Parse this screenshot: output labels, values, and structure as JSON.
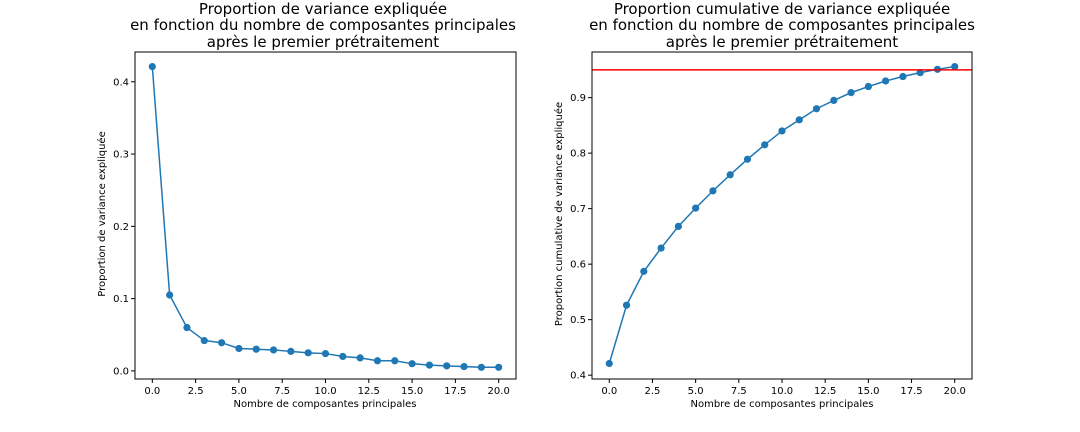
{
  "chart_data": [
    {
      "type": "line",
      "title": [
        "Proportion de variance expliquée",
        "en fonction du nombre de composantes principales",
        "après le premier prétraitement"
      ],
      "xlabel": "Nombre de composantes principales",
      "ylabel": "Proportion de variance expliquée",
      "xlim": [
        -1,
        21
      ],
      "ylim": [
        -0.0112,
        0.4412
      ],
      "xticks": [
        0.0,
        2.5,
        5.0,
        7.5,
        10.0,
        12.5,
        15.0,
        17.5,
        20.0
      ],
      "xtick_labels": [
        "0.0",
        "2.5",
        "5.0",
        "7.5",
        "10.0",
        "12.5",
        "15.0",
        "17.5",
        "20.0"
      ],
      "yticks": [
        0.0,
        0.1,
        0.2,
        0.3,
        0.4
      ],
      "ytick_labels": [
        "0.0",
        "0.1",
        "0.2",
        "0.3",
        "0.4"
      ],
      "grid": false,
      "color": "#1f77b4",
      "series": [
        {
          "x": [
            0,
            1,
            2,
            3,
            4,
            5,
            6,
            7,
            8,
            9,
            10,
            11,
            12,
            13,
            14,
            15,
            16,
            17,
            18,
            19,
            20
          ],
          "values": [
            0.421,
            0.105,
            0.06,
            0.042,
            0.039,
            0.031,
            0.03,
            0.029,
            0.027,
            0.025,
            0.024,
            0.02,
            0.018,
            0.014,
            0.014,
            0.01,
            0.008,
            0.007,
            0.006,
            0.005,
            0.005
          ]
        }
      ]
    },
    {
      "type": "line",
      "title": [
        "Proportion cumulative de variance expliquée",
        "en fonction du nombre de composantes principales",
        "après le premier prétraitement"
      ],
      "xlabel": "Nombre de composantes principales",
      "ylabel": "Proportion cumulative de variance expliquée",
      "xlim": [
        -1,
        21
      ],
      "ylim": [
        0.3931,
        0.9822
      ],
      "xticks": [
        0.0,
        2.5,
        5.0,
        7.5,
        10.0,
        12.5,
        15.0,
        17.5,
        20.0
      ],
      "xtick_labels": [
        "0.0",
        "2.5",
        "5.0",
        "7.5",
        "10.0",
        "12.5",
        "15.0",
        "17.5",
        "20.0"
      ],
      "yticks": [
        0.4,
        0.5,
        0.6,
        0.7,
        0.8,
        0.9
      ],
      "ytick_labels": [
        "0.4",
        "0.5",
        "0.6",
        "0.7",
        "0.8",
        "0.9"
      ],
      "grid": false,
      "color": "#1f77b4",
      "threshold": {
        "value": 0.95,
        "color": "#ff0000"
      },
      "series": [
        {
          "x": [
            0,
            1,
            2,
            3,
            4,
            5,
            6,
            7,
            8,
            9,
            10,
            11,
            12,
            13,
            14,
            15,
            16,
            17,
            18,
            19,
            20
          ],
          "values": [
            0.421,
            0.526,
            0.587,
            0.629,
            0.668,
            0.701,
            0.732,
            0.761,
            0.789,
            0.815,
            0.84,
            0.86,
            0.88,
            0.895,
            0.909,
            0.92,
            0.93,
            0.938,
            0.945,
            0.951,
            0.956
          ]
        }
      ]
    }
  ]
}
